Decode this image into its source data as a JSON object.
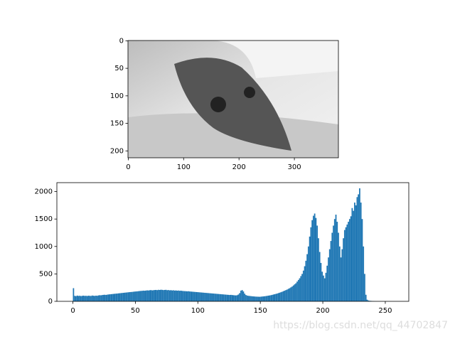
{
  "chart_data": [
    {
      "type": "image",
      "xlim": [
        -0.5,
        379.5
      ],
      "ylim": [
        212.5,
        -0.5
      ],
      "xticks": [
        0,
        100,
        200,
        300
      ],
      "yticks": [
        0,
        50,
        100,
        150,
        200
      ]
    },
    {
      "type": "histogram",
      "color": "#1f77b4",
      "xlim": [
        -12.8,
        268.8
      ],
      "ylim": [
        0,
        2163
      ],
      "xticks": [
        0,
        50,
        100,
        150,
        200,
        250
      ],
      "yticks": [
        0,
        500,
        1000,
        1500,
        2000
      ],
      "bins": [
        0,
        1,
        2,
        3,
        4,
        5,
        6,
        7,
        8,
        9,
        10,
        11,
        12,
        13,
        14,
        15,
        16,
        17,
        18,
        19,
        20,
        21,
        22,
        23,
        24,
        25,
        26,
        27,
        28,
        29,
        30,
        31,
        32,
        33,
        34,
        35,
        36,
        37,
        38,
        39,
        40,
        41,
        42,
        43,
        44,
        45,
        46,
        47,
        48,
        49,
        50,
        51,
        52,
        53,
        54,
        55,
        56,
        57,
        58,
        59,
        60,
        61,
        62,
        63,
        64,
        65,
        66,
        67,
        68,
        69,
        70,
        71,
        72,
        73,
        74,
        75,
        76,
        77,
        78,
        79,
        80,
        81,
        82,
        83,
        84,
        85,
        86,
        87,
        88,
        89,
        90,
        91,
        92,
        93,
        94,
        95,
        96,
        97,
        98,
        99,
        100,
        101,
        102,
        103,
        104,
        105,
        106,
        107,
        108,
        109,
        110,
        111,
        112,
        113,
        114,
        115,
        116,
        117,
        118,
        119,
        120,
        121,
        122,
        123,
        124,
        125,
        126,
        127,
        128,
        129,
        130,
        131,
        132,
        133,
        134,
        135,
        136,
        137,
        138,
        139,
        140,
        141,
        142,
        143,
        144,
        145,
        146,
        147,
        148,
        149,
        150,
        151,
        152,
        153,
        154,
        155,
        156,
        157,
        158,
        159,
        160,
        161,
        162,
        163,
        164,
        165,
        166,
        167,
        168,
        169,
        170,
        171,
        172,
        173,
        174,
        175,
        176,
        177,
        178,
        179,
        180,
        181,
        182,
        183,
        184,
        185,
        186,
        187,
        188,
        189,
        190,
        191,
        192,
        193,
        194,
        195,
        196,
        197,
        198,
        199,
        200,
        201,
        202,
        203,
        204,
        205,
        206,
        207,
        208,
        209,
        210,
        211,
        212,
        213,
        214,
        215,
        216,
        217,
        218,
        219,
        220,
        221,
        222,
        223,
        224,
        225,
        226,
        227,
        228,
        229,
        230,
        231,
        232,
        233,
        234,
        235,
        236,
        237,
        238,
        239,
        240,
        241,
        242,
        243,
        244,
        245,
        246,
        247,
        248,
        249,
        250,
        251,
        252,
        253,
        254,
        255,
        256
      ],
      "values": [
        240,
        100,
        95,
        105,
        98,
        102,
        96,
        100,
        104,
        99,
        101,
        97,
        103,
        100,
        98,
        106,
        102,
        99,
        104,
        101,
        108,
        112,
        110,
        115,
        118,
        120,
        117,
        122,
        125,
        128,
        130,
        133,
        135,
        138,
        140,
        142,
        145,
        148,
        150,
        153,
        155,
        158,
        160,
        163,
        165,
        168,
        170,
        172,
        175,
        178,
        180,
        182,
        185,
        188,
        190,
        192,
        195,
        193,
        197,
        200,
        198,
        202,
        205,
        200,
        203,
        206,
        208,
        204,
        210,
        207,
        212,
        209,
        205,
        208,
        210,
        203,
        206,
        200,
        204,
        198,
        202,
        196,
        199,
        194,
        197,
        192,
        195,
        190,
        188,
        186,
        185,
        182,
        184,
        180,
        178,
        176,
        174,
        172,
        170,
        168,
        166,
        164,
        162,
        160,
        158,
        156,
        154,
        152,
        150,
        148,
        146,
        144,
        142,
        140,
        138,
        136,
        134,
        132,
        130,
        128,
        126,
        124,
        122,
        120,
        118,
        116,
        118,
        115,
        112,
        110,
        108,
        112,
        125,
        150,
        195,
        205,
        180,
        140,
        115,
        105,
        100,
        98,
        95,
        92,
        90,
        88,
        86,
        85,
        84,
        83,
        85,
        88,
        90,
        93,
        96,
        100,
        104,
        108,
        112,
        118,
        124,
        130,
        136,
        142,
        150,
        158,
        166,
        175,
        185,
        195,
        205,
        215,
        228,
        240,
        255,
        270,
        290,
        310,
        330,
        360,
        390,
        420,
        460,
        500,
        560,
        640,
        740,
        860,
        1000,
        1180,
        1350,
        1480,
        1560,
        1600,
        1520,
        1380,
        1150,
        900,
        700,
        540,
        470,
        420,
        520,
        650,
        800,
        950,
        1100,
        1250,
        1380,
        1500,
        1580,
        1450,
        1250,
        1000,
        800,
        950,
        1150,
        1300,
        1350,
        1400,
        1450,
        1500,
        1550,
        1700,
        1650,
        1800,
        1750,
        1900,
        1950,
        2060,
        1800,
        1500,
        1000,
        500,
        120,
        30,
        15,
        10,
        8,
        5,
        3,
        2,
        1,
        0,
        0,
        0,
        0,
        0,
        0,
        0,
        0,
        0,
        0,
        0,
        0,
        0
      ],
      "watermark": "https://blog.csdn.net/qq_44702847"
    }
  ]
}
